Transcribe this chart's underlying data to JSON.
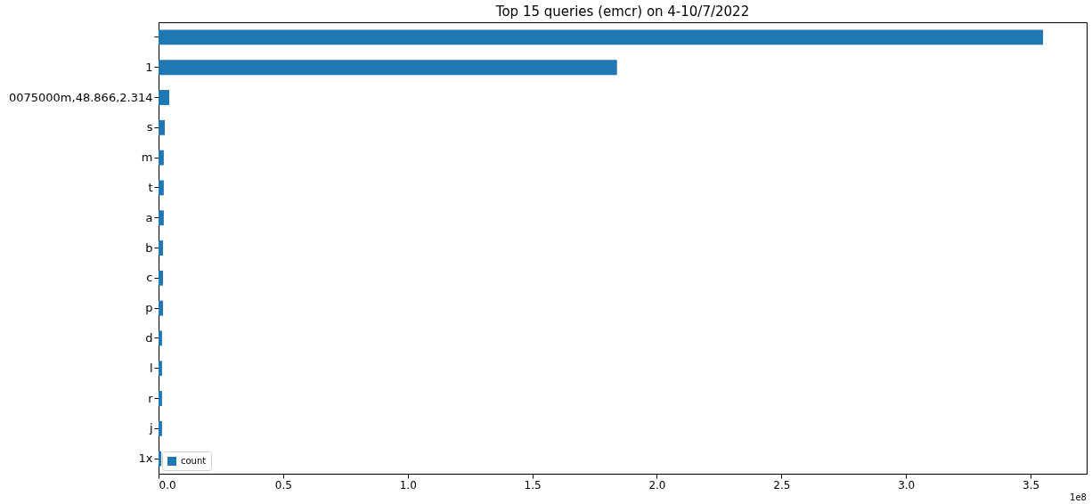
{
  "chart_data": {
    "type": "bar",
    "orientation": "horizontal",
    "title": "Top 15 queries (emcr) on 4-10/7/2022",
    "categories": [
      null,
      "1",
      "0075000m,48.866,2.314",
      "s",
      "m",
      "t",
      "a",
      "b",
      "c",
      "p",
      "d",
      "l",
      "r",
      "j",
      "1x"
    ],
    "series": [
      {
        "name": "count",
        "color": "#1f77b4",
        "values": [
          3.55,
          1.84,
          0.043,
          0.025,
          0.021,
          0.021,
          0.021,
          0.018,
          0.018,
          0.018,
          0.014,
          0.014,
          0.014,
          0.014,
          0.011
        ]
      }
    ],
    "xlim": [
      0,
      3.725
    ],
    "xticks": [
      {
        "value": 0,
        "label": "0.0"
      },
      0.5,
      {
        "value": 1,
        "label": "1.0"
      },
      1.5,
      {
        "value": 2,
        "label": "2.0"
      },
      2.5,
      {
        "value": 3,
        "label": "3.0"
      },
      3.5
    ],
    "annotations": [
      "1e8"
    ],
    "legend": "bottom left",
    "grid": false
  }
}
